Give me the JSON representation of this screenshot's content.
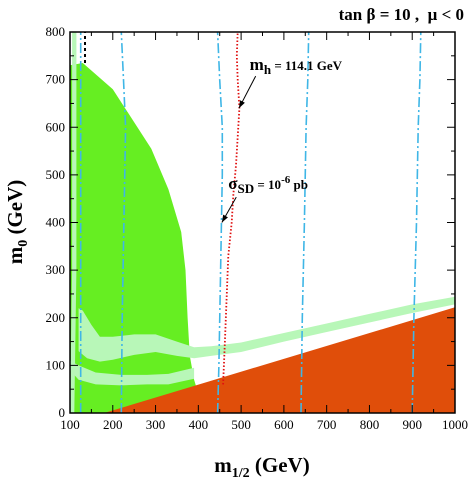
{
  "chart_data": {
    "type": "area",
    "title_parts": {
      "tan": "tan",
      "beta": "β",
      "eq1": " = 10 ,  ",
      "mu": "μ",
      "rel": " < 0"
    },
    "xlabel": {
      "base": "m",
      "sub": "1/2",
      "unit": " (GeV)"
    },
    "ylabel": {
      "base": "m",
      "sub": "0",
      "unit": " (GeV)"
    },
    "xlim": [
      100,
      1000
    ],
    "ylim": [
      0,
      800
    ],
    "xticks": [
      100,
      200,
      300,
      400,
      500,
      600,
      700,
      800,
      900,
      1000
    ],
    "yticks": [
      0,
      100,
      200,
      300,
      400,
      500,
      600,
      700,
      800
    ],
    "colors": {
      "excluded_region": "#e04e0a",
      "bsgamma_region": "#66ee22",
      "relic_density_band": "#b8f7b8",
      "sigma_sd_contours": "#3fb6e6",
      "higgs_contour": "#e01010",
      "chargino_line": "#000000"
    },
    "regions": {
      "excluded": [
        [
          100,
          0
        ],
        [
          180,
          0
        ],
        [
          1000,
          222
        ],
        [
          1000,
          0
        ]
      ],
      "bsgamma": [
        [
          100,
          0
        ],
        [
          100,
          730
        ],
        [
          130,
          735
        ],
        [
          200,
          680
        ],
        [
          290,
          555
        ],
        [
          330,
          470
        ],
        [
          360,
          380
        ],
        [
          370,
          300
        ],
        [
          375,
          200
        ],
        [
          380,
          120
        ],
        [
          390,
          70
        ],
        [
          395,
          55
        ],
        [
          390,
          0
        ]
      ],
      "relic_band_main": [
        [
          120,
          130
        ],
        [
          140,
          115
        ],
        [
          170,
          108
        ],
        [
          200,
          112
        ],
        [
          250,
          122
        ],
        [
          300,
          128
        ],
        [
          350,
          120
        ],
        [
          390,
          115
        ],
        [
          430,
          120
        ],
        [
          500,
          128
        ],
        [
          600,
          150
        ],
        [
          700,
          170
        ],
        [
          800,
          190
        ],
        [
          900,
          210
        ],
        [
          1000,
          228
        ],
        [
          1000,
          244
        ],
        [
          900,
          228
        ],
        [
          800,
          208
        ],
        [
          700,
          188
        ],
        [
          600,
          168
        ],
        [
          500,
          148
        ],
        [
          430,
          140
        ],
        [
          390,
          138
        ],
        [
          350,
          150
        ],
        [
          300,
          165
        ],
        [
          250,
          165
        ],
        [
          200,
          160
        ],
        [
          170,
          160
        ],
        [
          150,
          185
        ],
        [
          140,
          200
        ],
        [
          130,
          215
        ],
        [
          120,
          220
        ]
      ],
      "relic_band_strip": [
        [
          100,
          0
        ],
        [
          110,
          0
        ],
        [
          115,
          300
        ],
        [
          115,
          800
        ],
        [
          105,
          800
        ],
        [
          105,
          300
        ]
      ],
      "relic_band_lower": [
        [
          100,
          90
        ],
        [
          120,
          70
        ],
        [
          160,
          60
        ],
        [
          220,
          58
        ],
        [
          280,
          60
        ],
        [
          330,
          60
        ],
        [
          390,
          72
        ],
        [
          390,
          95
        ],
        [
          330,
          82
        ],
        [
          280,
          80
        ],
        [
          220,
          80
        ],
        [
          160,
          85
        ],
        [
          120,
          100
        ],
        [
          100,
          110
        ]
      ]
    },
    "contours": {
      "higgs": [
        [
          458,
          60
        ],
        [
          462,
          150
        ],
        [
          466,
          240
        ],
        [
          470,
          330
        ],
        [
          478,
          400
        ],
        [
          482,
          460
        ],
        [
          488,
          520
        ],
        [
          492,
          580
        ],
        [
          496,
          640
        ],
        [
          492,
          700
        ],
        [
          490,
          750
        ],
        [
          492,
          800
        ]
      ],
      "chargino": [
        [
          135,
          735
        ],
        [
          135,
          800
        ]
      ],
      "sigma_sd_1": [
        [
          125,
          0
        ],
        [
          125,
          100
        ],
        [
          125,
          300
        ],
        [
          125,
          500
        ],
        [
          125,
          700
        ],
        [
          125,
          800
        ]
      ],
      "sigma_sd_2": [
        [
          220,
          0
        ],
        [
          222,
          200
        ],
        [
          226,
          400
        ],
        [
          230,
          600
        ],
        [
          225,
          700
        ],
        [
          220,
          800
        ]
      ],
      "sigma_sd_3": [
        [
          445,
          0
        ],
        [
          448,
          100
        ],
        [
          452,
          300
        ],
        [
          456,
          500
        ],
        [
          456,
          600
        ],
        [
          450,
          700
        ],
        [
          445,
          800
        ]
      ],
      "sigma_sd_4": [
        [
          640,
          0
        ],
        [
          643,
          200
        ],
        [
          648,
          400
        ],
        [
          652,
          600
        ],
        [
          656,
          700
        ],
        [
          658,
          800
        ]
      ],
      "sigma_sd_5": [
        [
          900,
          0
        ],
        [
          904,
          200
        ],
        [
          910,
          400
        ],
        [
          914,
          600
        ],
        [
          918,
          700
        ],
        [
          920,
          800
        ]
      ]
    },
    "annotations": {
      "higgs": {
        "base": "m",
        "sub": "h",
        "text": " = 114.1 GeV",
        "x": 520,
        "y": 720,
        "arrow_to": [
          495,
          640
        ]
      },
      "sigma": {
        "base": "σ",
        "sub": "SD",
        "mid": " = 10",
        "sup": "-6",
        "unit": " pb",
        "x": 470,
        "y": 470,
        "arrow_to": [
          455,
          400
        ]
      }
    }
  }
}
